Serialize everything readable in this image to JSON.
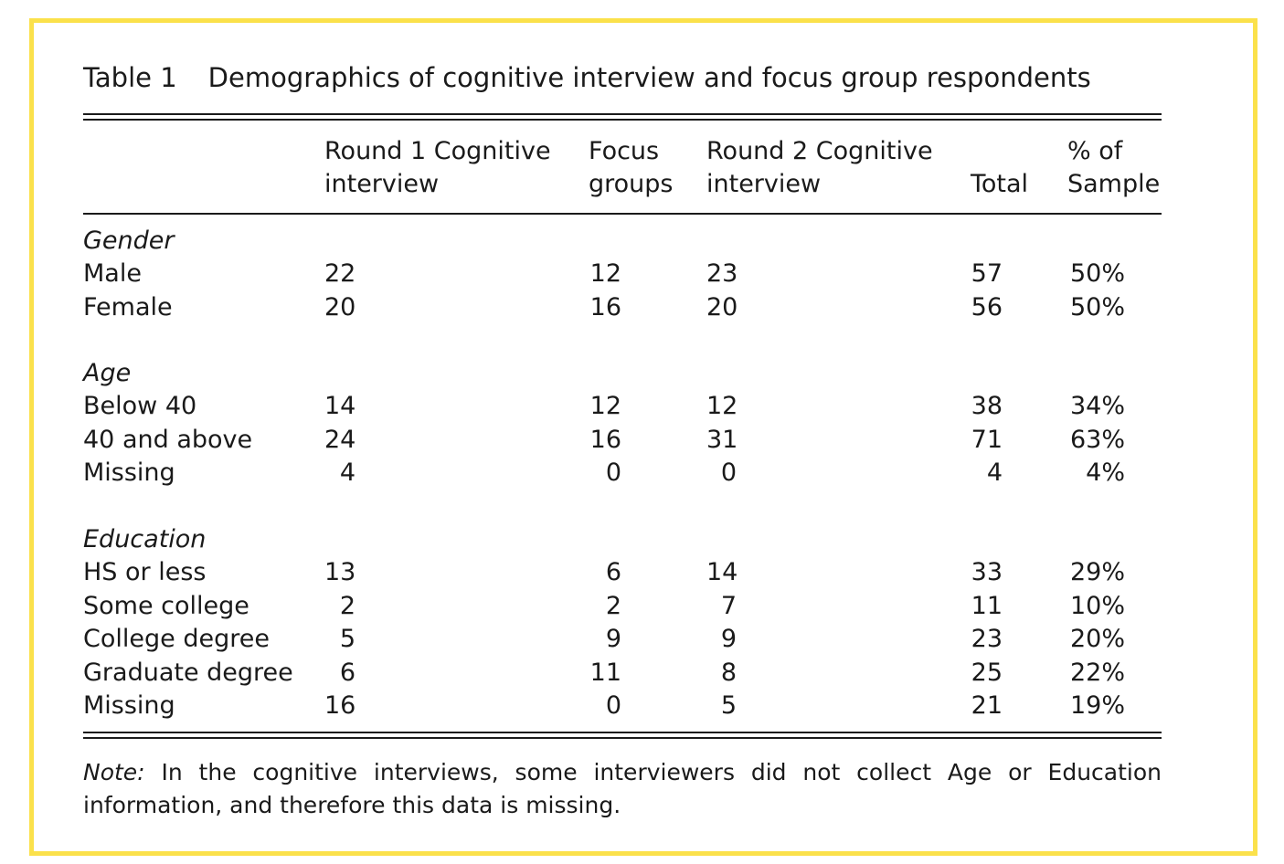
{
  "table": {
    "label": "Table 1",
    "title": "Demographics of cognitive interview and focus group respondents",
    "columns": [
      {
        "line1": "Round 1 Cognitive",
        "line2": "interview"
      },
      {
        "line1": "Focus",
        "line2": "groups"
      },
      {
        "line1": "Round 2 Cognitive",
        "line2": "interview"
      },
      {
        "line1": "",
        "line2": "Total"
      },
      {
        "line1": "% of",
        "line2": "Sample"
      }
    ],
    "sections": [
      {
        "heading": "Gender",
        "rows": [
          {
            "label": "Male",
            "values": [
              "22",
              "12",
              "23",
              "57",
              "50%"
            ]
          },
          {
            "label": "Female",
            "values": [
              "20",
              "16",
              "20",
              "56",
              "50%"
            ]
          }
        ]
      },
      {
        "heading": "Age",
        "rows": [
          {
            "label": "Below 40",
            "values": [
              "14",
              "12",
              "12",
              "38",
              "34%"
            ]
          },
          {
            "label": "40 and above",
            "values": [
              "24",
              "16",
              "31",
              "71",
              "63%"
            ]
          },
          {
            "label": "Missing",
            "values": [
              "4",
              "0",
              "0",
              "4",
              "4%"
            ]
          }
        ]
      },
      {
        "heading": "Education",
        "rows": [
          {
            "label": "HS or less",
            "values": [
              "13",
              "6",
              "14",
              "33",
              "29%"
            ]
          },
          {
            "label": "Some college",
            "values": [
              "2",
              "2",
              "7",
              "11",
              "10%"
            ]
          },
          {
            "label": "College degree",
            "values": [
              "5",
              "9",
              "9",
              "23",
              "20%"
            ]
          },
          {
            "label": "Graduate degree",
            "values": [
              "6",
              "11",
              "8",
              "25",
              "22%"
            ]
          },
          {
            "label": "Missing",
            "values": [
              "16",
              "0",
              "5",
              "21",
              "19%"
            ]
          }
        ]
      }
    ],
    "note_label": "Note:",
    "note_text": "In the cognitive interviews, some interviewers did not collect Age or Education information, and therefore this data is missing."
  },
  "colors": {
    "border": "#fbe14b",
    "text": "#1a1a1a"
  }
}
